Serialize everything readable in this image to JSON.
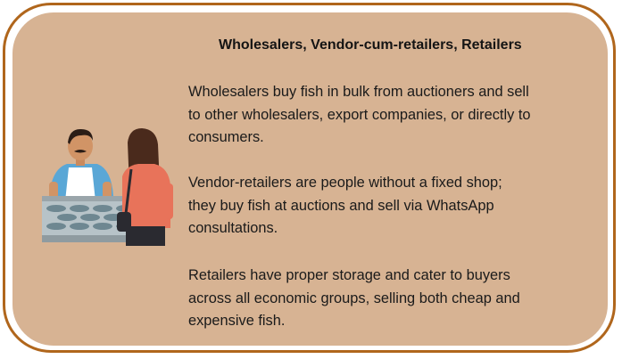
{
  "title": "Wholesalers, Vendor-cum-retailers, Retailers",
  "paragraphs": [
    "Wholesalers buy fish in bulk from auctioners and sell\nto other wholesalers, export companies, or directly to\nconsumers.",
    " Vendor-retailers are people without a fixed shop;\nthey buy fish at auctions and sell via WhatsApp\nconsultations.",
    "Retailers have proper storage and cater to buyers\nacross all economic groups, selling both cheap and\nexpensive fish."
  ],
  "colors": {
    "border": "#b0661c",
    "card": "#d7b393"
  }
}
